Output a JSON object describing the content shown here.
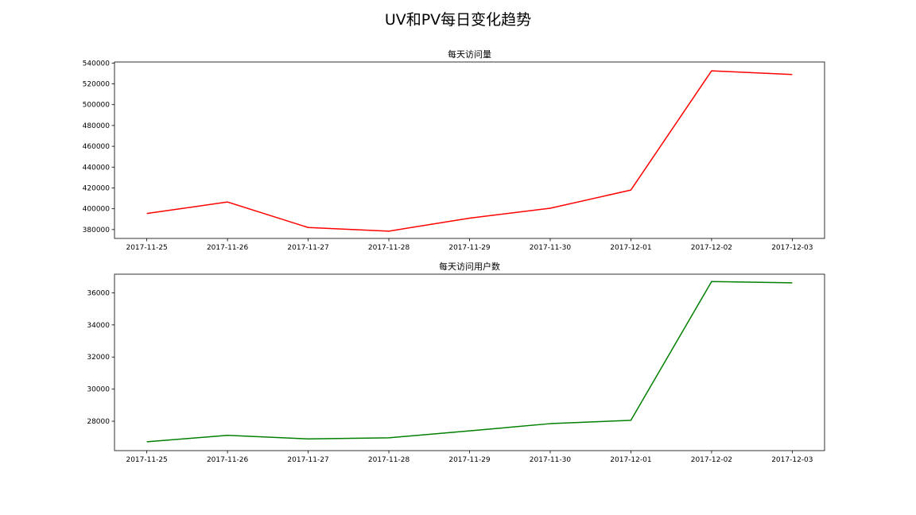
{
  "figure": {
    "title": "UV和PV每日变化趋势"
  },
  "chart_data": [
    {
      "type": "line",
      "title": "每天访问量",
      "xlabel": "",
      "ylabel": "",
      "grid": false,
      "x": [
        "2017-11-25",
        "2017-11-26",
        "2017-11-27",
        "2017-11-28",
        "2017-11-29",
        "2017-11-30",
        "2017-12-01",
        "2017-12-02",
        "2017-12-03"
      ],
      "yticks": [
        "380000",
        "400000",
        "420000",
        "440000",
        "460000",
        "480000",
        "500000",
        "520000",
        "540000"
      ],
      "ylim": [
        371500,
        541000
      ],
      "series": [
        {
          "color": "#ff0000",
          "values": [
            395500,
            406500,
            382000,
            378500,
            391000,
            400500,
            418000,
            532500,
            529000
          ]
        }
      ]
    },
    {
      "type": "line",
      "title": "每天访问用户数",
      "xlabel": "",
      "ylabel": "",
      "grid": false,
      "x": [
        "2017-11-25",
        "2017-11-26",
        "2017-11-27",
        "2017-11-28",
        "2017-11-29",
        "2017-11-30",
        "2017-12-01",
        "2017-12-02",
        "2017-12-03"
      ],
      "yticks": [
        "28000",
        "30000",
        "32000",
        "34000",
        "36000"
      ],
      "ylim": [
        26170,
        37160
      ],
      "series": [
        {
          "color": "#008000",
          "values": [
            26720,
            27120,
            26900,
            26970,
            27400,
            27850,
            28060,
            36700,
            36620
          ]
        }
      ]
    }
  ]
}
